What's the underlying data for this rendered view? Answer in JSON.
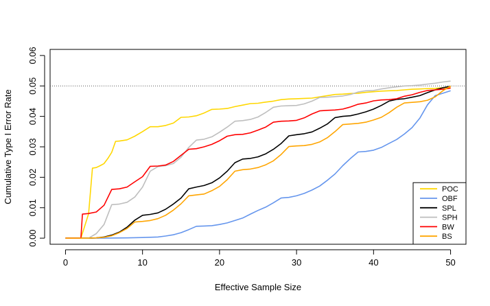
{
  "chart_data": {
    "type": "line",
    "title": "",
    "xlabel": "Effective Sample Size",
    "ylabel": "Cumulative Type I Error Rate",
    "xlim": [
      -2,
      52
    ],
    "ylim": [
      -0.002,
      0.062
    ],
    "x_ticks": [
      0,
      10,
      20,
      30,
      40,
      50
    ],
    "y_ticks": [
      0.0,
      0.01,
      0.02,
      0.03,
      0.04,
      0.05,
      0.06
    ],
    "y_tick_labels": [
      "0.00",
      "0.01",
      "0.02",
      "0.03",
      "0.04",
      "0.05",
      "0.06"
    ],
    "reference_line": {
      "y": 0.05,
      "style": "dotted"
    },
    "grid": false,
    "legend": {
      "placement": "bottom-right"
    },
    "series": [
      {
        "name": "POC",
        "color": "#FFD700",
        "x": [
          0,
          2,
          3,
          3.5,
          4,
          4.5,
          5,
          5.5,
          6,
          6.5,
          7,
          8,
          9,
          10,
          11,
          12,
          13,
          14,
          15,
          16,
          17,
          18,
          19,
          20,
          21,
          22,
          23,
          24,
          25,
          26,
          27,
          28,
          29,
          30,
          31,
          32,
          33,
          34,
          35,
          36,
          37,
          38,
          39,
          40,
          41,
          42,
          43,
          44,
          45,
          46,
          47,
          48,
          49,
          50
        ],
        "y": [
          0,
          0,
          0.008,
          0.023,
          0.0232,
          0.0238,
          0.0245,
          0.0262,
          0.0282,
          0.0318,
          0.0319,
          0.0323,
          0.0335,
          0.035,
          0.0366,
          0.0366,
          0.037,
          0.0378,
          0.0397,
          0.0398,
          0.0402,
          0.0411,
          0.0423,
          0.0424,
          0.0426,
          0.0432,
          0.0437,
          0.0442,
          0.0443,
          0.0447,
          0.045,
          0.0455,
          0.0457,
          0.0458,
          0.0459,
          0.046,
          0.0464,
          0.0468,
          0.0472,
          0.0473,
          0.0475,
          0.0476,
          0.0479,
          0.0481,
          0.0483,
          0.0484,
          0.0485,
          0.0487,
          0.0489,
          0.049,
          0.0491,
          0.0492,
          0.0494,
          0.0496
        ]
      },
      {
        "name": "OBF",
        "color": "#6495ED",
        "x": [
          0,
          5,
          8,
          10,
          12,
          13,
          14,
          15,
          16,
          17,
          18,
          19,
          20,
          21,
          22,
          23,
          24,
          25,
          26,
          27,
          28,
          29,
          30,
          31,
          32,
          33,
          34,
          35,
          36,
          37,
          38,
          39,
          40,
          41,
          42,
          43,
          44,
          45,
          46,
          47,
          48,
          49,
          50
        ],
        "y": [
          0,
          0,
          0.0001,
          0.0002,
          0.0004,
          0.0007,
          0.0011,
          0.0018,
          0.0028,
          0.0039,
          0.004,
          0.0041,
          0.0045,
          0.005,
          0.0058,
          0.0066,
          0.0079,
          0.0091,
          0.0102,
          0.0116,
          0.0132,
          0.0134,
          0.0139,
          0.0147,
          0.0158,
          0.0171,
          0.019,
          0.0211,
          0.0238,
          0.0262,
          0.0283,
          0.0285,
          0.0289,
          0.0298,
          0.0311,
          0.0324,
          0.0342,
          0.0363,
          0.0394,
          0.0438,
          0.0468,
          0.0476,
          0.0484
        ]
      },
      {
        "name": "SPL",
        "color": "#000000",
        "x": [
          0,
          3,
          4,
          5,
          6,
          7,
          8,
          9,
          10,
          11,
          12,
          13,
          14,
          15,
          16,
          17,
          18,
          19,
          20,
          21,
          22,
          23,
          24,
          25,
          26,
          27,
          28,
          29,
          30,
          31,
          32,
          33,
          34,
          35,
          36,
          37,
          38,
          39,
          40,
          41,
          42,
          43,
          44,
          45,
          46,
          47,
          48,
          49,
          50
        ],
        "y": [
          0,
          0,
          0.0001,
          0.0004,
          0.001,
          0.002,
          0.0036,
          0.0059,
          0.0075,
          0.0078,
          0.0083,
          0.0095,
          0.0112,
          0.0132,
          0.0162,
          0.0168,
          0.0173,
          0.0182,
          0.0198,
          0.022,
          0.0248,
          0.026,
          0.0262,
          0.0267,
          0.0277,
          0.0292,
          0.0311,
          0.0336,
          0.034,
          0.0343,
          0.0349,
          0.0361,
          0.0375,
          0.0396,
          0.04,
          0.0402,
          0.0408,
          0.0415,
          0.0424,
          0.0436,
          0.045,
          0.0456,
          0.0458,
          0.0463,
          0.0468,
          0.0478,
          0.0487,
          0.0494,
          0.0499
        ]
      },
      {
        "name": "SPH",
        "color": "#BEBEBE",
        "x": [
          0,
          3,
          4,
          5,
          6,
          7,
          8,
          9,
          10,
          11,
          12,
          13,
          14,
          15,
          16,
          17,
          18,
          19,
          20,
          21,
          22,
          23,
          24,
          25,
          26,
          27,
          28,
          29,
          30,
          31,
          32,
          33,
          34,
          35,
          36,
          37,
          38,
          39,
          40,
          41,
          42,
          43,
          44,
          45,
          46,
          47,
          48,
          49,
          50
        ],
        "y": [
          0,
          0,
          0.0015,
          0.0045,
          0.011,
          0.0112,
          0.0118,
          0.0135,
          0.0168,
          0.022,
          0.0235,
          0.0238,
          0.0245,
          0.0266,
          0.0298,
          0.0322,
          0.0325,
          0.0333,
          0.0348,
          0.0365,
          0.0384,
          0.0386,
          0.039,
          0.0398,
          0.0413,
          0.043,
          0.0434,
          0.0435,
          0.0436,
          0.0441,
          0.045,
          0.0462,
          0.0463,
          0.0465,
          0.0467,
          0.0472,
          0.048,
          0.0484,
          0.0485,
          0.049,
          0.0494,
          0.0497,
          0.05,
          0.0501,
          0.0503,
          0.0506,
          0.0509,
          0.0513,
          0.0516
        ]
      },
      {
        "name": "BW",
        "color": "#FF0000",
        "x": [
          0,
          2,
          2.2,
          3,
          4,
          5,
          6,
          7,
          8,
          9,
          10,
          11,
          12,
          13,
          14,
          15,
          16,
          17,
          18,
          19,
          20,
          21,
          22,
          23,
          24,
          25,
          26,
          27,
          28,
          29,
          30,
          31,
          32,
          33,
          34,
          35,
          36,
          37,
          38,
          39,
          40,
          41,
          42,
          43,
          44,
          45,
          46,
          47,
          48,
          49,
          50
        ],
        "y": [
          0,
          0,
          0.0079,
          0.0081,
          0.0086,
          0.0108,
          0.016,
          0.0162,
          0.0168,
          0.0185,
          0.0202,
          0.0236,
          0.0237,
          0.024,
          0.0252,
          0.0272,
          0.0292,
          0.0294,
          0.03,
          0.0308,
          0.032,
          0.0335,
          0.034,
          0.0341,
          0.0346,
          0.0355,
          0.0365,
          0.0381,
          0.0384,
          0.0385,
          0.0387,
          0.0395,
          0.0408,
          0.0418,
          0.042,
          0.0421,
          0.0424,
          0.0431,
          0.044,
          0.0444,
          0.0451,
          0.0454,
          0.0455,
          0.0458,
          0.0466,
          0.0471,
          0.0479,
          0.0485,
          0.0487,
          0.0489,
          0.0493
        ]
      },
      {
        "name": "BS",
        "color": "#FFA500",
        "x": [
          0,
          3,
          4,
          5,
          6,
          7,
          8,
          9,
          10,
          11,
          12,
          13,
          14,
          15,
          16,
          17,
          18,
          19,
          20,
          21,
          22,
          23,
          24,
          25,
          26,
          27,
          28,
          29,
          30,
          31,
          32,
          33,
          34,
          35,
          36,
          37,
          38,
          39,
          40,
          41,
          42,
          43,
          44,
          45,
          46,
          47,
          48,
          49,
          50
        ],
        "y": [
          0,
          0,
          0.0001,
          0.0003,
          0.0008,
          0.0018,
          0.0032,
          0.0053,
          0.0055,
          0.0058,
          0.0064,
          0.0075,
          0.0092,
          0.0113,
          0.0139,
          0.0142,
          0.0145,
          0.0156,
          0.017,
          0.0192,
          0.022,
          0.0225,
          0.0227,
          0.0232,
          0.0241,
          0.0254,
          0.0275,
          0.0301,
          0.0303,
          0.0304,
          0.0308,
          0.0316,
          0.033,
          0.035,
          0.0373,
          0.0375,
          0.0377,
          0.0381,
          0.0388,
          0.0397,
          0.0412,
          0.043,
          0.0444,
          0.0446,
          0.0448,
          0.0453,
          0.0464,
          0.0484,
          0.05
        ]
      }
    ]
  }
}
